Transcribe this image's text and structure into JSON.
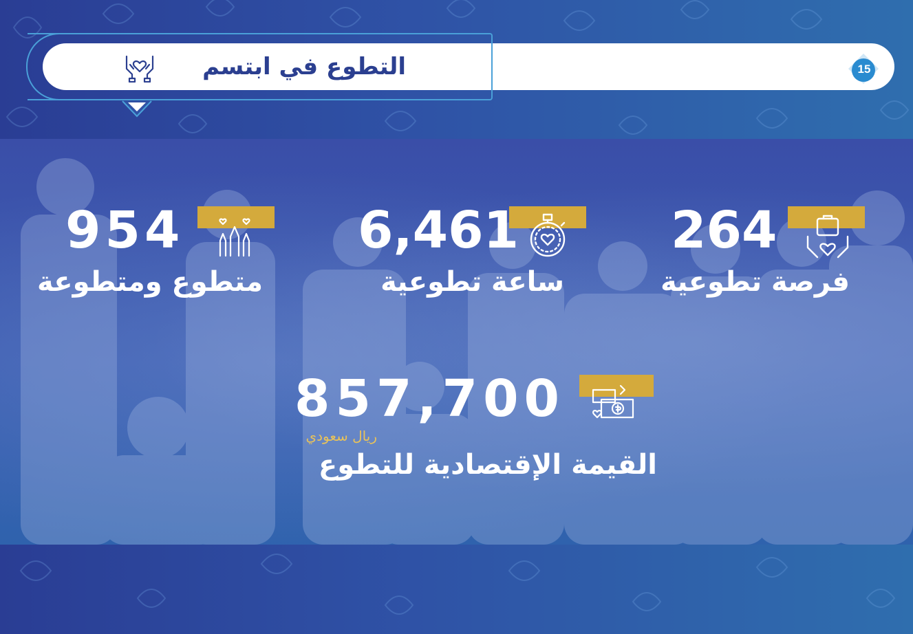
{
  "header": {
    "title": "التطوع في ابتسم",
    "page_number": "15",
    "icon": "hands-heart-icon"
  },
  "colors": {
    "background": "#2f52a6",
    "accent_gold": "#d4aa3c",
    "title_text": "#2b3f90",
    "badge": "#2a8bd0"
  },
  "stats": [
    {
      "value": "264",
      "label": "فرصة تطوعية",
      "icon": "hand-heart-briefcase-icon"
    },
    {
      "value": "6,461",
      "label": "ساعة تطوعية",
      "icon": "stopwatch-heart-icon"
    },
    {
      "value": "954",
      "label": "متطوع ومتطوعة",
      "icon": "raised-hands-hearts-icon"
    }
  ],
  "economic_value": {
    "value": "857,700",
    "currency": "ريال سعودي",
    "label": "القيمة الإقتصادية للتطوع",
    "icon": "money-heart-icon"
  }
}
